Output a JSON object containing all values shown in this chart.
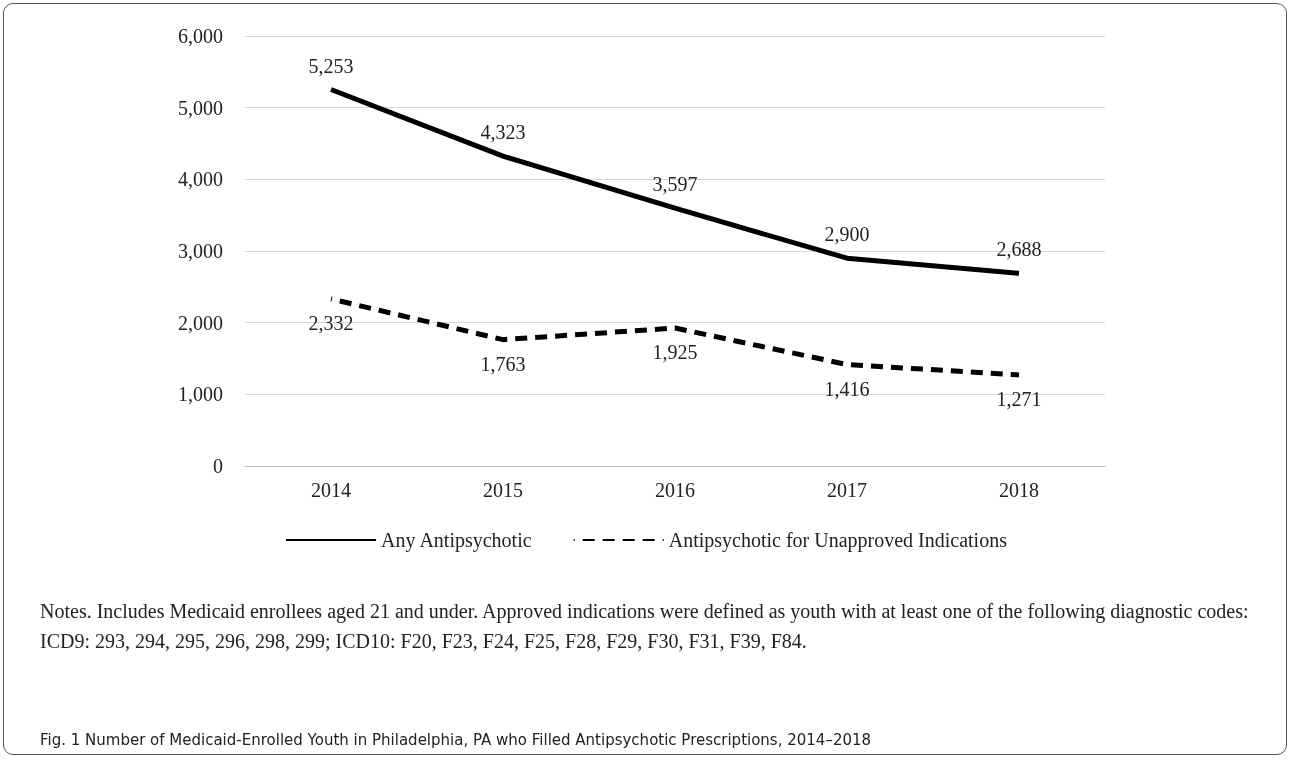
{
  "chart_data": {
    "type": "line",
    "categories": [
      "2014",
      "2015",
      "2016",
      "2017",
      "2018"
    ],
    "series": [
      {
        "name": "Any Antipsychotic",
        "color": "#000000",
        "line_style": "solid",
        "values": [
          5253,
          4323,
          3597,
          2900,
          2688
        ],
        "value_labels": [
          "5,253",
          "4,323",
          "3,597",
          "2,900",
          "2,688"
        ]
      },
      {
        "name": "Antipsychotic for Unapproved Indications",
        "color": "#000000",
        "line_style": "dashed",
        "values": [
          2332,
          1763,
          1925,
          1416,
          1271
        ],
        "value_labels": [
          "2,332",
          "1,763",
          "1,925",
          "1,416",
          "1,271"
        ]
      }
    ],
    "ylim": [
      0,
      6000
    ],
    "yticks": [
      0,
      {
        "value": 1000,
        "label": "1,000"
      },
      {
        "value": 2000,
        "label": "2,000"
      },
      {
        "value": 3000,
        "label": "3,000"
      },
      {
        "value": 4000,
        "label": "4,000"
      },
      {
        "value": 5000,
        "label": "5,000"
      },
      {
        "value": 6000,
        "label": "6,000"
      }
    ],
    "grid": "y",
    "legend": "bottom",
    "marker": "none",
    "data_labels": true,
    "annotations": [
      "Notes. Includes Medicaid enrollees aged 21 and under. Approved indications were defined as youth with at least one of the following diagnostic codes: ICD9: 293, 294, 295, 296, 298, 299; ICD10: F20, F23, F24, F25, F28, F29, F30, F31, F39, F84.",
      "Fig. 1 Number of Medicaid-Enrolled Youth in Philadelphia, PA who Filled Antipsychotic Prescriptions, 2014–2018"
    ]
  }
}
